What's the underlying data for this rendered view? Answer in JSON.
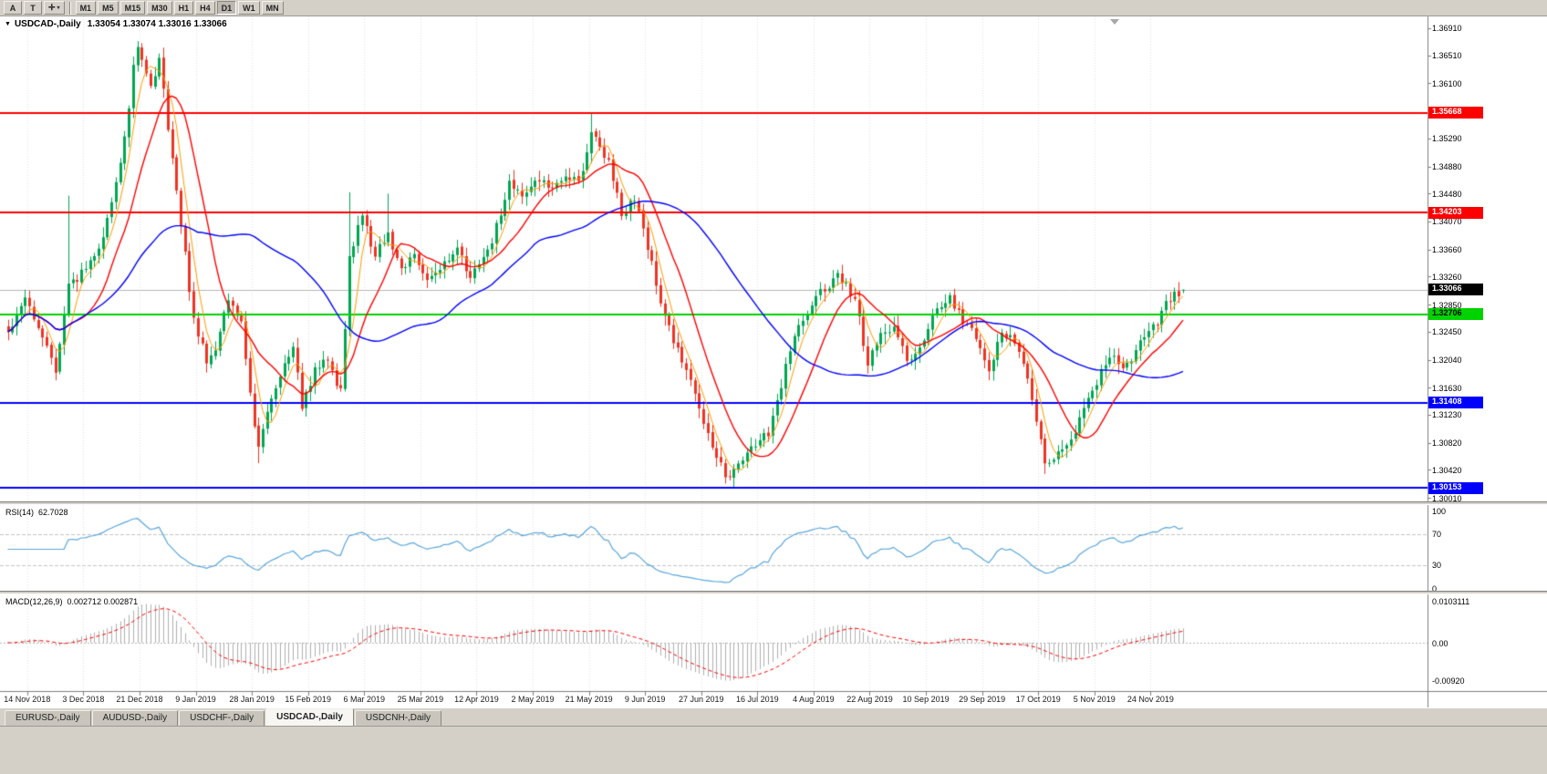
{
  "colors": {
    "chrome": "#d4d0c8",
    "chart_bg": "#ffffff",
    "up_candle": "#00a651",
    "down_candle": "#ee3424",
    "ma_fast": "#ff9b00",
    "ma_mid": "#ff0000",
    "ma_slow": "#0000ff",
    "rsi_line": "#5aa7dc",
    "macd_hist": "#b0b0b0",
    "macd_signal": "#ff0000",
    "current_price_bg": "#000000",
    "grid": "#e4e4e4"
  },
  "toolbar": {
    "tool_buttons": [
      {
        "label": "A"
      },
      {
        "label": "T"
      }
    ],
    "cursor_button": {
      "icon": "✛",
      "caret": "▾"
    },
    "timeframes": [
      {
        "label": "M1"
      },
      {
        "label": "M5"
      },
      {
        "label": "M15"
      },
      {
        "label": "M30"
      },
      {
        "label": "H1"
      },
      {
        "label": "H4"
      },
      {
        "label": "D1",
        "active": true
      },
      {
        "label": "W1"
      },
      {
        "label": "MN"
      }
    ]
  },
  "chart_header": {
    "collapse_icon": "▼",
    "title": "USDCAD-,Daily",
    "ohlc": "1.33054 1.33074 1.33016 1.33066"
  },
  "price_axis": {
    "labels": [
      "1.36910",
      "1.36510",
      "1.36100",
      "1.35290",
      "1.34880",
      "1.34480",
      "1.34070",
      "1.33660",
      "1.33260",
      "1.32850",
      "1.32450",
      "1.32040",
      "1.31630",
      "1.31230",
      "1.30820",
      "1.30420",
      "1.30010"
    ]
  },
  "current_price": {
    "label": "1.33066",
    "value": 1.33066
  },
  "date_axis": {
    "labels": [
      "14 Nov 2018",
      "3 Dec 2018",
      "21 Dec 2018",
      "9 Jan 2019",
      "28 Jan 2019",
      "15 Feb 2019",
      "6 Mar 2019",
      "25 Mar 2019",
      "12 Apr 2019",
      "2 May 2019",
      "21 May 2019",
      "9 Jun 2019",
      "27 Jun 2019",
      "16 Jul 2019",
      "4 Aug 2019",
      "22 Aug 2019",
      "10 Sep 2019",
      "29 Sep 2019",
      "17 Oct 2019",
      "5 Nov 2019",
      "24 Nov 2019"
    ]
  },
  "rsi_panel": {
    "name": "RSI(14)",
    "value": "62.7028",
    "axis_labels": [
      {
        "label": "100",
        "v": 100,
        "dashed": false
      },
      {
        "label": "70",
        "v": 70,
        "dashed": true
      },
      {
        "label": "30",
        "v": 30,
        "dashed": true
      },
      {
        "label": "0",
        "v": 0,
        "dashed": false
      }
    ]
  },
  "macd_panel": {
    "name": "MACD(12,26,9)",
    "value": "0.002712 0.002871",
    "axis_labels": [
      {
        "label": "0.0103111",
        "v": 0.0103111
      },
      {
        "label": "0.00",
        "v": 0
      },
      {
        "label": "-0.00920",
        "v": -0.0092
      }
    ]
  },
  "tabs": [
    {
      "label": "EURUSD-,Daily",
      "active": false
    },
    {
      "label": "AUDUSD-,Daily",
      "active": false
    },
    {
      "label": "USDCHF-,Daily",
      "active": false
    },
    {
      "label": "USDCAD-,Daily",
      "active": true
    },
    {
      "label": "USDCNH-,Daily",
      "active": false
    }
  ],
  "chart_data": {
    "type": "candlestick",
    "symbol": "USDCAD",
    "period": "Daily",
    "last_ohlc": {
      "open": 1.33054,
      "high": 1.33074,
      "low": 1.33016,
      "close": 1.33066
    },
    "n_candles": 273,
    "y_axis": {
      "top": 1.37084,
      "bottom": 1.29957
    },
    "levels": [
      {
        "value": 1.35668,
        "label": "1.35668",
        "color": "#ff0000"
      },
      {
        "value": 1.34203,
        "label": "1.34203",
        "color": "#ff0000"
      },
      {
        "value": 1.32706,
        "label": "1.32706",
        "color": "#00d300"
      },
      {
        "value": 1.31408,
        "label": "1.31408",
        "color": "#0000ff"
      },
      {
        "value": 1.30153,
        "label": "1.30153",
        "color": "#0000ff"
      }
    ],
    "price_path": [
      [
        0,
        1.3245
      ],
      [
        4,
        1.3292
      ],
      [
        8,
        1.3238
      ],
      [
        11,
        1.3186
      ],
      [
        14,
        1.331
      ],
      [
        18,
        1.3338
      ],
      [
        21,
        1.3366
      ],
      [
        25,
        1.346
      ],
      [
        28,
        1.3575
      ],
      [
        29,
        1.364
      ],
      [
        30,
        1.3662
      ],
      [
        33,
        1.3605
      ],
      [
        35,
        1.3645
      ],
      [
        37,
        1.3548
      ],
      [
        40,
        1.3405
      ],
      [
        43,
        1.3262
      ],
      [
        46,
        1.3205
      ],
      [
        48,
        1.3222
      ],
      [
        51,
        1.3295
      ],
      [
        54,
        1.3256
      ],
      [
        56,
        1.315
      ],
      [
        58,
        1.3072
      ],
      [
        60,
        1.3125
      ],
      [
        63,
        1.318
      ],
      [
        66,
        1.3222
      ],
      [
        68,
        1.3136
      ],
      [
        71,
        1.319
      ],
      [
        74,
        1.3202
      ],
      [
        77,
        1.3156
      ],
      [
        79,
        1.3352
      ],
      [
        82,
        1.3418
      ],
      [
        85,
        1.3355
      ],
      [
        88,
        1.3392
      ],
      [
        91,
        1.3332
      ],
      [
        94,
        1.3358
      ],
      [
        97,
        1.3316
      ],
      [
        101,
        1.3345
      ],
      [
        104,
        1.3362
      ],
      [
        107,
        1.333
      ],
      [
        110,
        1.3348
      ],
      [
        113,
        1.3398
      ],
      [
        116,
        1.3462
      ],
      [
        120,
        1.3445
      ],
      [
        123,
        1.3472
      ],
      [
        126,
        1.3452
      ],
      [
        129,
        1.3478
      ],
      [
        132,
        1.3462
      ],
      [
        135,
        1.354
      ],
      [
        139,
        1.3495
      ],
      [
        142,
        1.3418
      ],
      [
        145,
        1.3442
      ],
      [
        148,
        1.337
      ],
      [
        151,
        1.3292
      ],
      [
        154,
        1.323
      ],
      [
        158,
        1.3174
      ],
      [
        161,
        1.3108
      ],
      [
        164,
        1.3064
      ],
      [
        166,
        1.3033
      ],
      [
        169,
        1.3048
      ],
      [
        172,
        1.307
      ],
      [
        176,
        1.3098
      ],
      [
        179,
        1.316
      ],
      [
        181,
        1.3222
      ],
      [
        184,
        1.3265
      ],
      [
        187,
        1.3298
      ],
      [
        192,
        1.3326
      ],
      [
        196,
        1.3295
      ],
      [
        199,
        1.3196
      ],
      [
        202,
        1.3242
      ],
      [
        205,
        1.3248
      ],
      [
        208,
        1.3202
      ],
      [
        211,
        1.322
      ],
      [
        215,
        1.3282
      ],
      [
        218,
        1.3295
      ],
      [
        221,
        1.3262
      ],
      [
        224,
        1.324
      ],
      [
        227,
        1.3184
      ],
      [
        230,
        1.3246
      ],
      [
        234,
        1.3222
      ],
      [
        237,
        1.3145
      ],
      [
        240,
        1.3056
      ],
      [
        243,
        1.3065
      ],
      [
        246,
        1.3082
      ],
      [
        249,
        1.3132
      ],
      [
        253,
        1.3186
      ],
      [
        256,
        1.3208
      ],
      [
        258,
        1.3186
      ],
      [
        261,
        1.3218
      ],
      [
        263,
        1.3242
      ],
      [
        266,
        1.3258
      ],
      [
        268,
        1.3285
      ],
      [
        270,
        1.33
      ],
      [
        272,
        1.33066
      ]
    ],
    "wick_overrides": {
      "14": [
        null,
        1.3445
      ],
      "30": [
        null,
        1.3672
      ],
      "58": [
        1.3052,
        null
      ],
      "79": [
        null,
        1.345
      ],
      "88": [
        null,
        1.3448
      ],
      "135": [
        null,
        1.3565
      ],
      "166": [
        1.3022,
        null
      ],
      "240": [
        1.3036,
        null
      ]
    },
    "moving_averages": [
      {
        "period": 5,
        "color": "#ff9b00",
        "width": 1
      },
      {
        "period": 13,
        "color": "#ff0000",
        "width": 1.4
      },
      {
        "period": 45,
        "color": "#0000ff",
        "width": 1.4
      }
    ],
    "indicators": [
      {
        "type": "RSI",
        "period": 14,
        "last": 62.7028
      },
      {
        "type": "MACD",
        "fast": 12,
        "slow": 26,
        "signal": 9,
        "main_last": 0.002712,
        "signal_last": 0.002871
      }
    ]
  }
}
